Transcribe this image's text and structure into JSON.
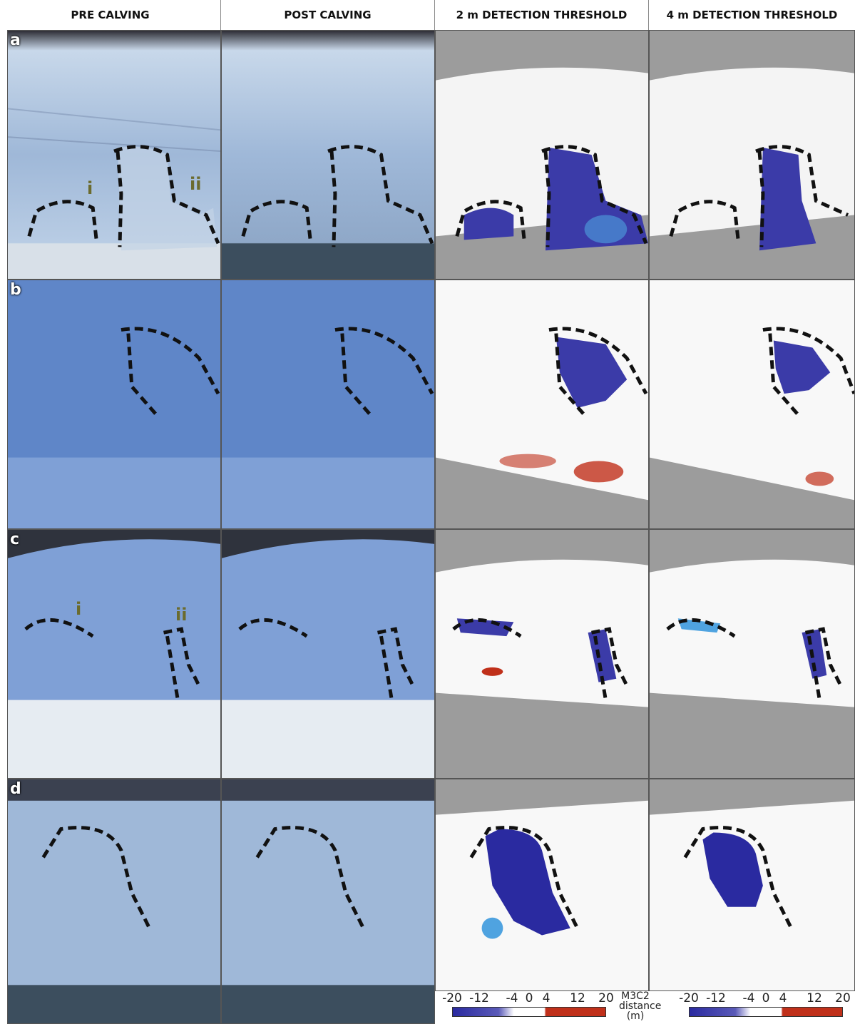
{
  "columns": [
    "PRE CALVING",
    "POST CALVING",
    "2 m DETECTION THRESHOLD",
    "4 m DETECTION THRESHOLD"
  ],
  "rows": [
    "a",
    "b",
    "c",
    "d"
  ],
  "annotations": {
    "a": [
      "i",
      "ii"
    ],
    "c": [
      "i",
      "ii"
    ]
  },
  "colorbar": {
    "ticks": [
      "-20",
      "-12",
      "-4",
      "0",
      "4",
      "12",
      "20"
    ],
    "label": [
      "M3C2",
      "distance",
      "(m)"
    ],
    "colors": {
      "negative": "#2a2aa0",
      "mid_negative": "#4fa3e0",
      "zero": "#ffffff",
      "positive": "#c0301a"
    }
  },
  "colors": {
    "ice_light": "#cfe0f0",
    "ice_blue": "#5f86c8",
    "water": "#3c4e5e",
    "no_data": "#9c9c9c",
    "outline": "#111111"
  }
}
